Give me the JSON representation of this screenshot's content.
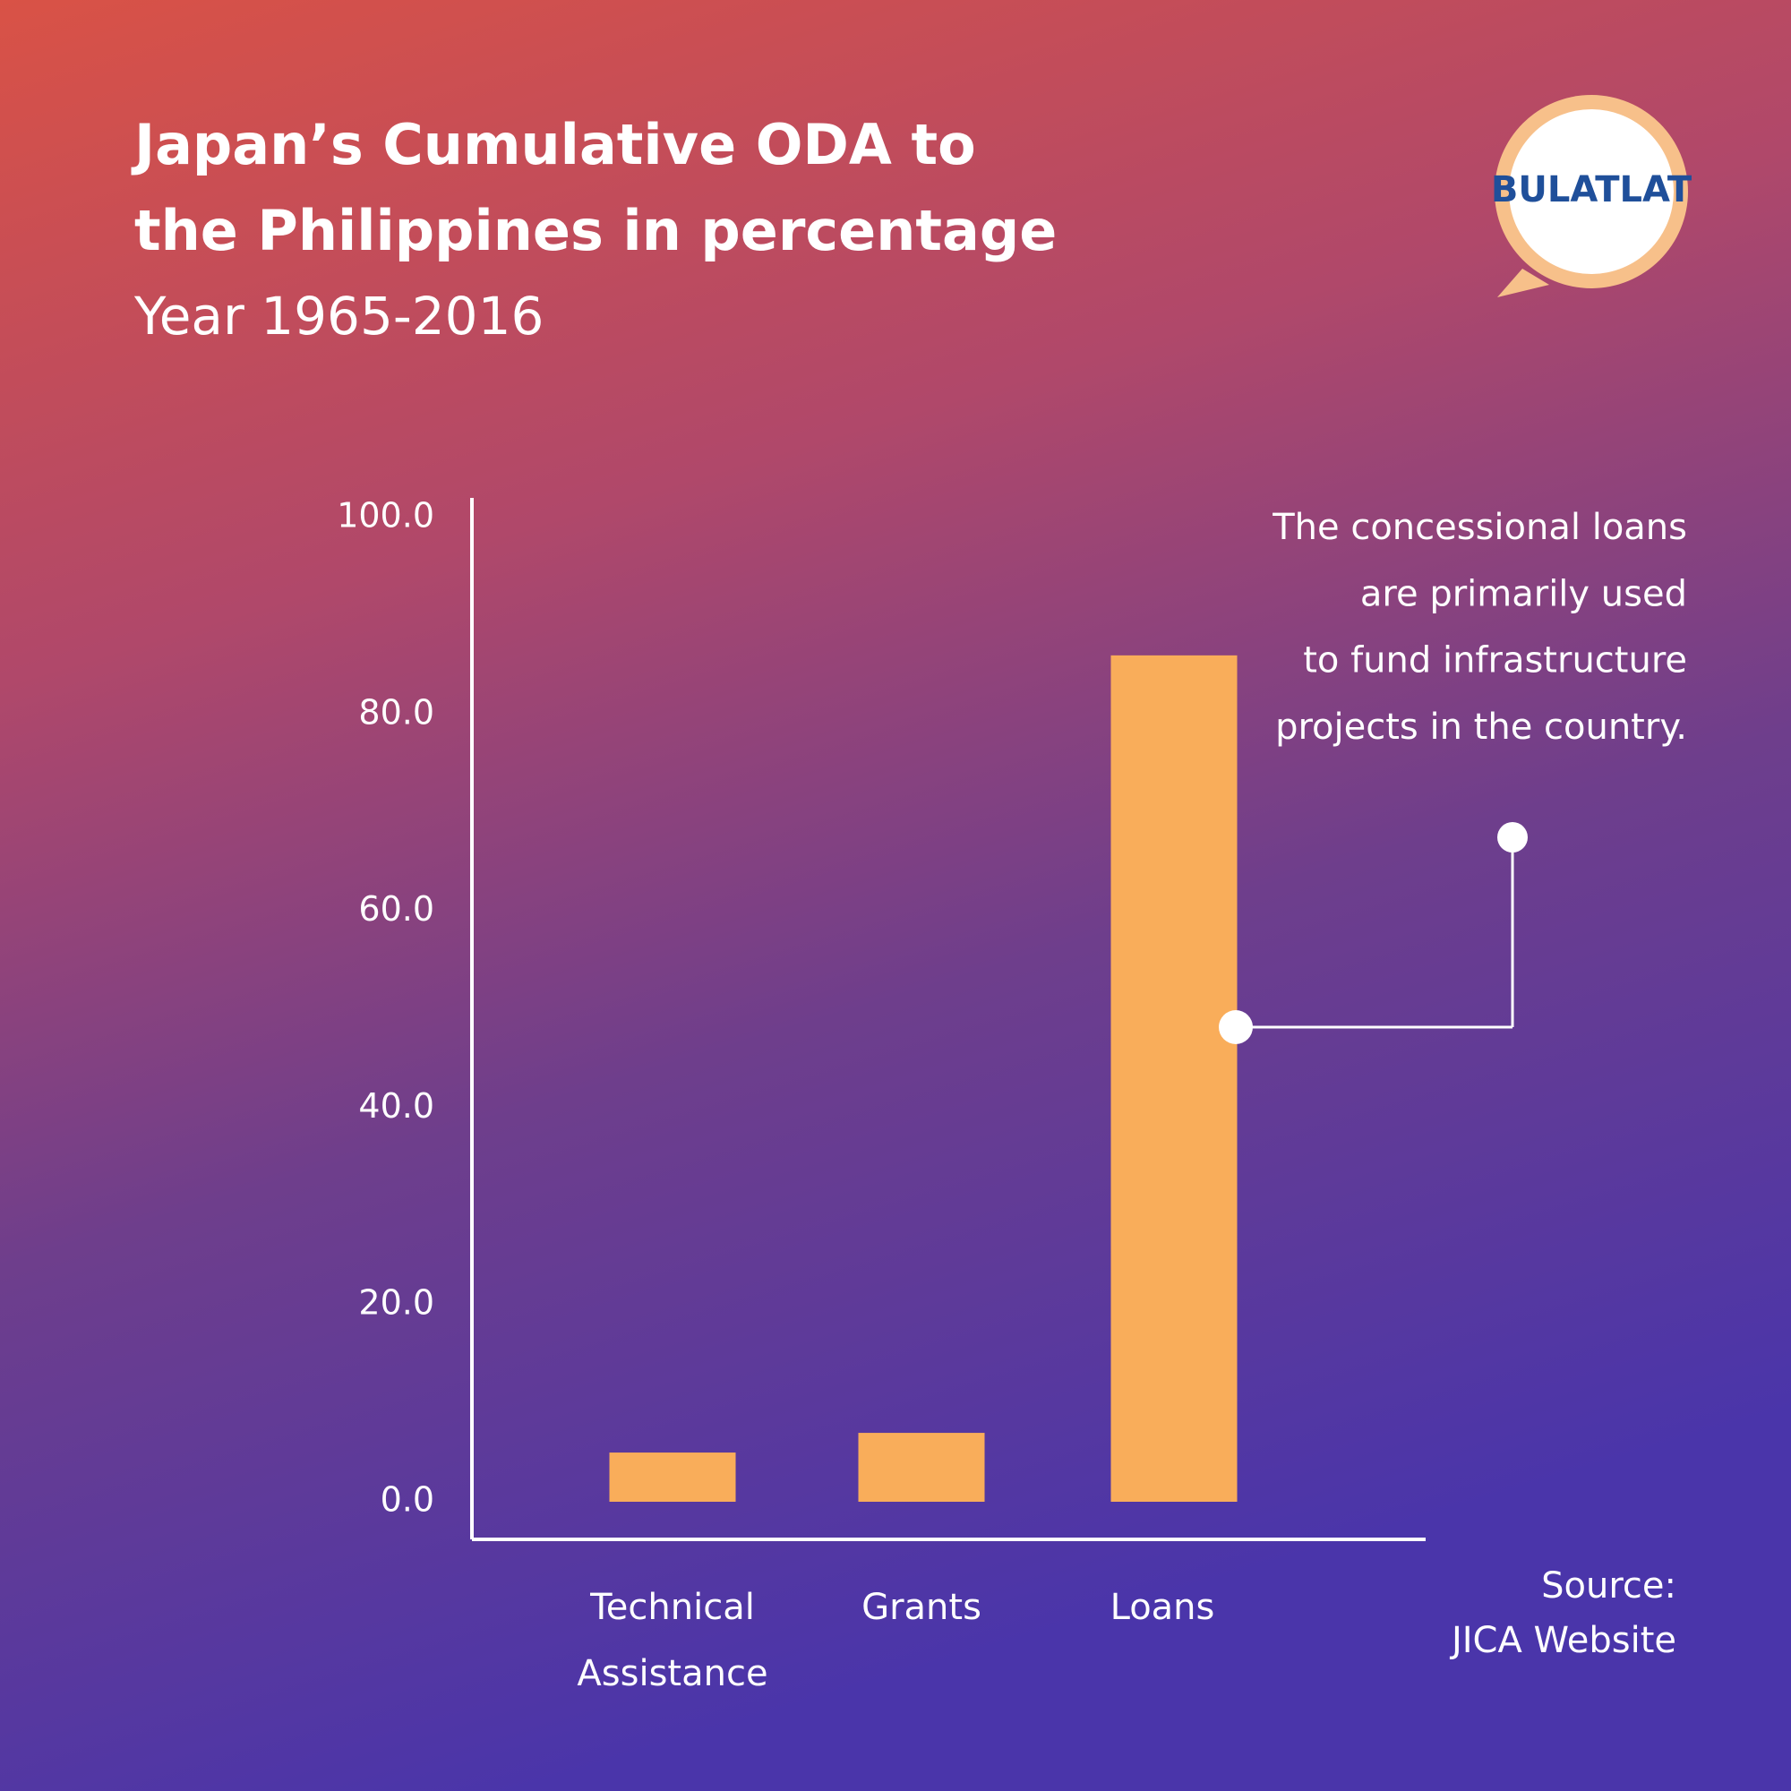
{
  "logo": "BULATLAT",
  "chart_data": {
    "type": "bar",
    "title": [
      "Japan’s Cumulative ODA to",
      "the Philippines in percentage"
    ],
    "subtitle": "Year 1965-2016",
    "categories": [
      "Technical Assistance",
      "Grants",
      "Loans"
    ],
    "values": [
      5,
      7,
      86
    ],
    "color": "#f9ad5a",
    "ylim": [
      0,
      100
    ],
    "yticks": [
      {
        "value": 0,
        "label": "0.0"
      },
      {
        "value": 20,
        "label": "20.0"
      },
      {
        "value": 40,
        "label": "40.0"
      },
      {
        "value": 60,
        "label": "60.0"
      },
      {
        "value": 80,
        "label": "80.0"
      },
      {
        "value": 100,
        "label": "100.0"
      }
    ],
    "annotation": [
      "The concessional loans",
      "are primarily used",
      "to fund infrastructure",
      "projects in the country."
    ],
    "source": [
      "Source:",
      "JICA Website"
    ]
  }
}
